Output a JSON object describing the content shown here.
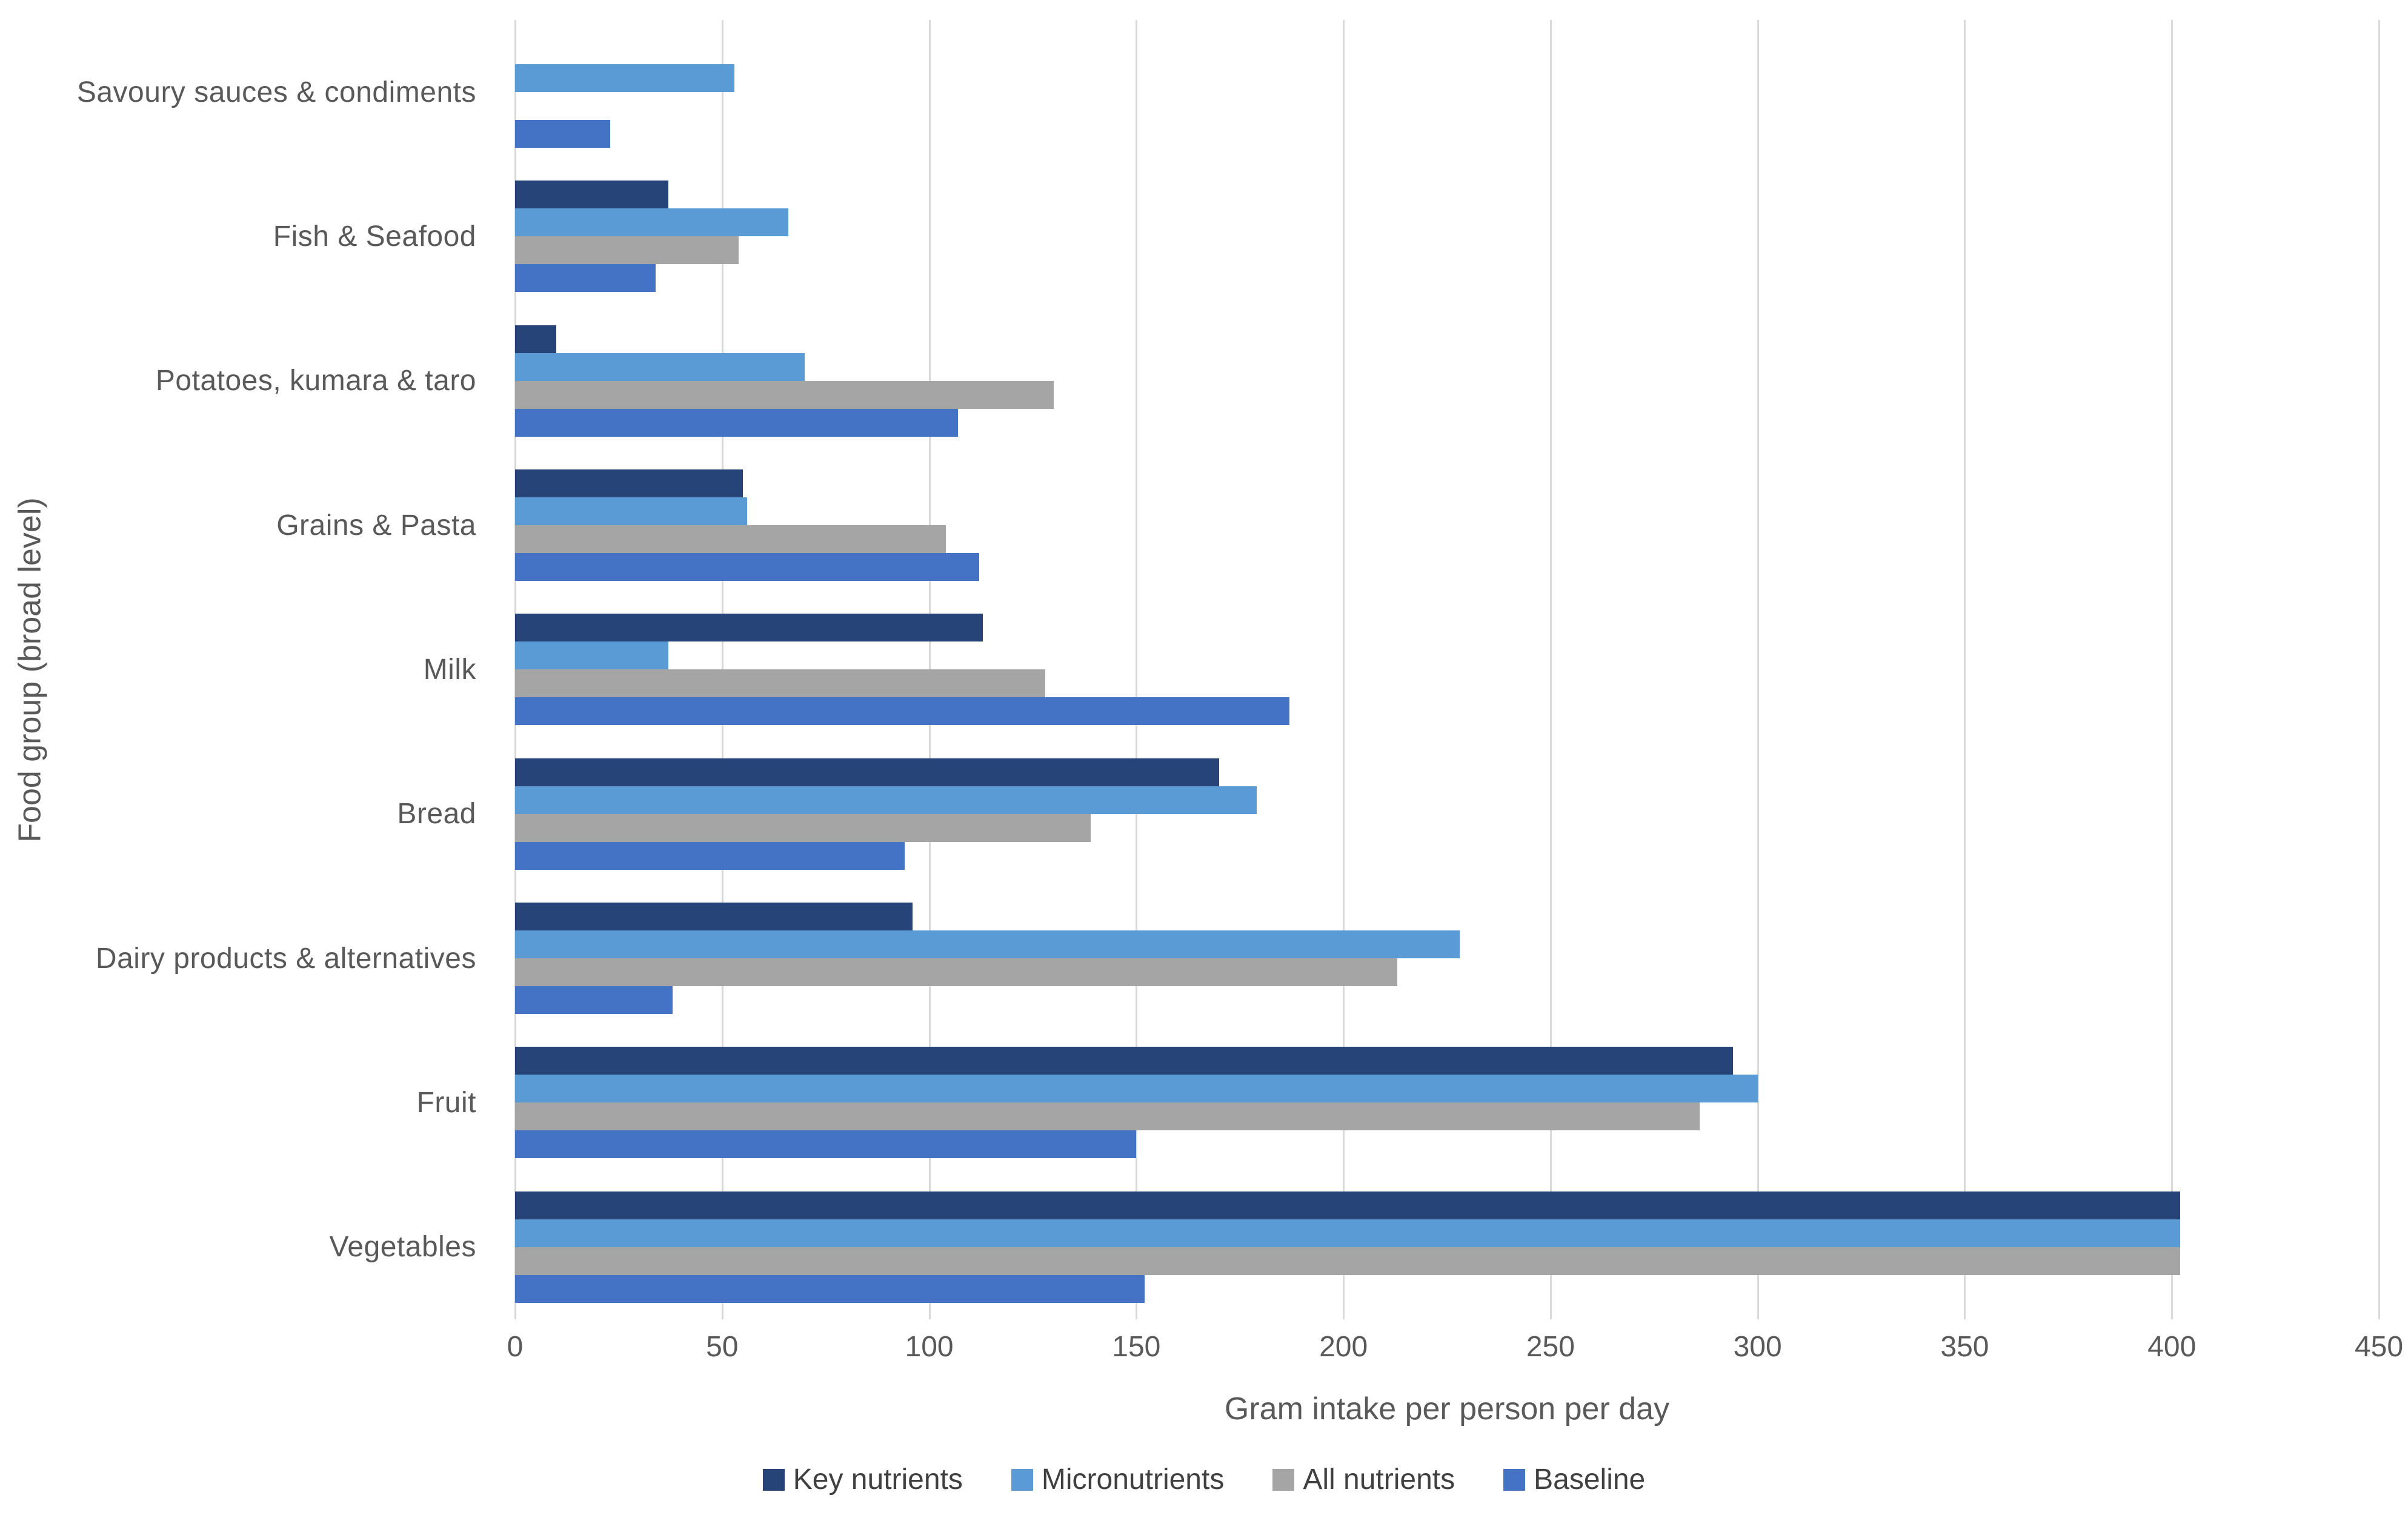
{
  "chart_data": {
    "type": "bar",
    "orientation": "horizontal",
    "title": "",
    "xlabel": "Gram intake per person per day",
    "ylabel": "Food group (broad level)",
    "xlim": [
      0,
      450
    ],
    "xticks": [
      0,
      50,
      100,
      150,
      200,
      250,
      300,
      350,
      400,
      450
    ],
    "grid": "vertical-only",
    "gridline_color": "#d9d9d9",
    "axis_text_color": "#595959",
    "legend_position": "bottom",
    "categories_top_to_bottom": [
      "Savoury sauces & condiments",
      "Fish & Seafood",
      "Potatoes, kumara & taro",
      "Grains & Pasta",
      "Milk",
      "Bread",
      "Dairy products & alternatives",
      "Fruit",
      "Vegetables"
    ],
    "series": [
      {
        "name": "Key nutrients",
        "color": "#264478",
        "values": [
          0,
          37,
          10,
          55,
          113,
          170,
          96,
          294,
          402
        ]
      },
      {
        "name": "Micronutrients",
        "color": "#5b9bd5",
        "values": [
          53,
          66,
          70,
          56,
          37,
          179,
          228,
          300,
          402
        ]
      },
      {
        "name": "All nutrients",
        "color": "#a5a5a5",
        "values": [
          0,
          54,
          130,
          104,
          128,
          139,
          213,
          286,
          402
        ]
      },
      {
        "name": "Baseline",
        "color": "#4472c4",
        "values": [
          23,
          34,
          107,
          112,
          187,
          94,
          38,
          150,
          152
        ]
      }
    ]
  }
}
